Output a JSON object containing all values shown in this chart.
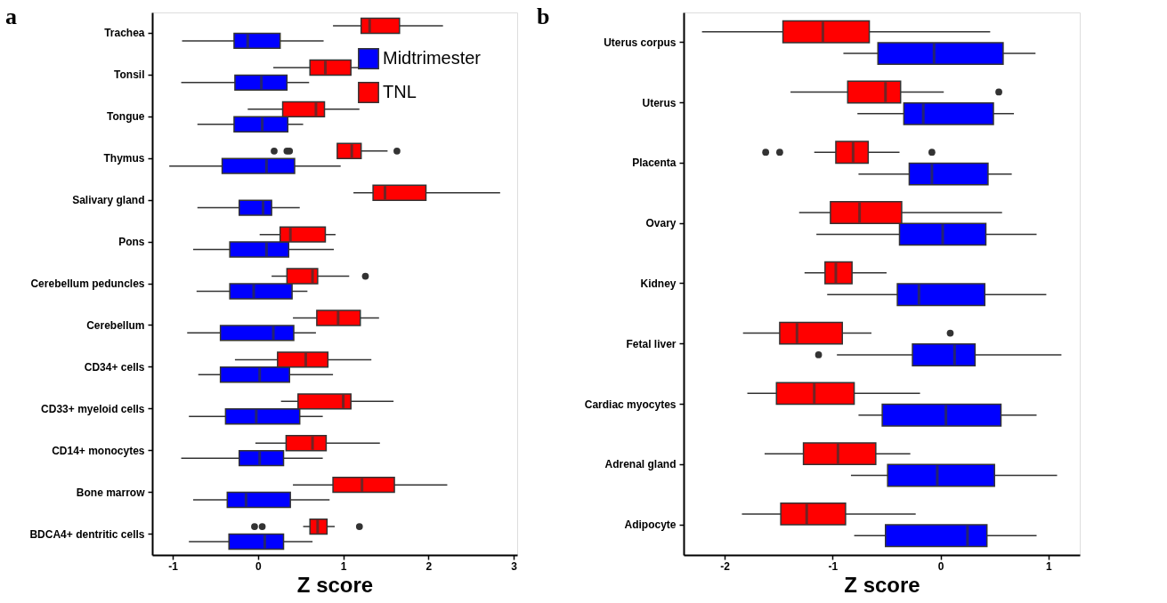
{
  "chart_data": [
    {
      "type": "box",
      "title": "a",
      "xlabel": "Z score",
      "orientation": "horizontal",
      "legend": "top right",
      "grid": false,
      "categories": [
        "Trachea",
        "Tonsil",
        "Tongue",
        "Thymus",
        "Salivary gland",
        "Pons",
        "Cerebellum peduncles",
        "Cerebellum",
        "CD34+ cells",
        "CD33+ myeloid cells",
        "CD14+ monocytes",
        "Bone marrow",
        "BDCA4+ dentritic cells"
      ],
      "xlim": [
        -1.24,
        3.04
      ],
      "xticks": [
        -1,
        0,
        1,
        2,
        3
      ],
      "series": [
        {
          "name": "Midtrimester",
          "color": "#0000ff",
          "boxes": [
            {
              "low": -0.89,
              "q1": -0.28,
              "median": -0.12,
              "q3": 0.26,
              "high": 0.77
            },
            {
              "low": -0.9,
              "q1": -0.27,
              "median": 0.04,
              "q3": 0.34,
              "high": 0.6
            },
            {
              "low": -0.71,
              "q1": -0.28,
              "median": 0.05,
              "q3": 0.35,
              "high": 0.53
            },
            {
              "low": -1.04,
              "q1": -0.42,
              "median": 0.1,
              "q3": 0.43,
              "high": 0.97
            },
            {
              "low": -0.71,
              "q1": -0.22,
              "median": 0.06,
              "q3": 0.16,
              "high": 0.49
            },
            {
              "low": -0.76,
              "q1": -0.33,
              "median": 0.1,
              "q3": 0.36,
              "high": 0.89
            },
            {
              "low": -0.72,
              "q1": -0.33,
              "median": -0.05,
              "q3": 0.4,
              "high": 0.58
            },
            {
              "low": -0.83,
              "q1": -0.44,
              "median": 0.18,
              "q3": 0.42,
              "high": 0.68
            },
            {
              "low": -0.7,
              "q1": -0.44,
              "median": 0.02,
              "q3": 0.37,
              "high": 0.88
            },
            {
              "low": -0.81,
              "q1": -0.38,
              "median": -0.02,
              "q3": 0.49,
              "high": 0.76
            },
            {
              "low": -0.9,
              "q1": -0.22,
              "median": 0.02,
              "q3": 0.3,
              "high": 0.76
            },
            {
              "low": -0.76,
              "q1": -0.36,
              "median": -0.14,
              "q3": 0.38,
              "high": 0.84
            },
            {
              "low": -0.81,
              "q1": -0.34,
              "median": 0.08,
              "q3": 0.3,
              "high": 0.64
            }
          ]
        },
        {
          "name": "TNL",
          "color": "#ff0000",
          "boxes": [
            {
              "low": 0.88,
              "q1": 1.21,
              "median": 1.31,
              "q3": 1.66,
              "high": 2.17
            },
            {
              "low": 0.18,
              "q1": 0.61,
              "median": 0.79,
              "q3": 1.09,
              "high": 1.41
            },
            {
              "low": -0.12,
              "q1": 0.29,
              "median": 0.68,
              "q3": 0.78,
              "high": 1.19
            },
            {
              "low": 0.93,
              "q1": 0.93,
              "median": 1.1,
              "q3": 1.21,
              "high": 1.52,
              "outliers": [
                0.19,
                0.34,
                0.37,
                1.63
              ]
            },
            {
              "low": 1.12,
              "q1": 1.35,
              "median": 1.49,
              "q3": 1.97,
              "high": 2.84
            },
            {
              "low": 0.02,
              "q1": 0.26,
              "median": 0.38,
              "q3": 0.79,
              "high": 0.91
            },
            {
              "low": 0.16,
              "q1": 0.34,
              "median": 0.64,
              "q3": 0.7,
              "high": 1.07,
              "outliers": [
                1.26
              ]
            },
            {
              "low": 0.41,
              "q1": 0.69,
              "median": 0.94,
              "q3": 1.2,
              "high": 1.42
            },
            {
              "low": -0.27,
              "q1": 0.23,
              "median": 0.56,
              "q3": 0.82,
              "high": 1.33
            },
            {
              "low": 0.27,
              "q1": 0.47,
              "median": 1.0,
              "q3": 1.09,
              "high": 1.59
            },
            {
              "low": -0.03,
              "q1": 0.33,
              "median": 0.64,
              "q3": 0.8,
              "high": 1.43
            },
            {
              "low": 0.41,
              "q1": 0.88,
              "median": 1.22,
              "q3": 1.6,
              "high": 2.22
            },
            {
              "low": 0.53,
              "q1": 0.61,
              "median": 0.7,
              "q3": 0.81,
              "high": 0.9,
              "outliers": [
                -0.04,
                0.05,
                1.19
              ]
            }
          ]
        }
      ]
    },
    {
      "type": "box",
      "title": "b",
      "xlabel": "Z score",
      "orientation": "horizontal",
      "grid": false,
      "categories": [
        "Uterus corpus",
        "Uterus",
        "Placenta",
        "Ovary",
        "Kidney",
        "Fetal liver",
        "Cardiac myocytes",
        "Adrenal gland",
        "Adipocyte"
      ],
      "xlim": [
        -2.38,
        1.29
      ],
      "xticks": [
        -2,
        -1,
        0,
        1
      ],
      "series": [
        {
          "color": "#0000ff",
          "boxes": [
            {
              "low": -0.9,
              "q1": -0.58,
              "median": -0.06,
              "q3": 0.58,
              "high": 0.88
            },
            {
              "low": -0.77,
              "q1": -0.34,
              "median": -0.16,
              "q3": 0.49,
              "high": 0.68
            },
            {
              "low": -0.76,
              "q1": -0.29,
              "median": -0.08,
              "q3": 0.44,
              "high": 0.66
            },
            {
              "low": -1.15,
              "q1": -0.38,
              "median": 0.02,
              "q3": 0.42,
              "high": 0.89
            },
            {
              "low": -1.05,
              "q1": -0.4,
              "median": -0.2,
              "q3": 0.41,
              "high": 0.98
            },
            {
              "low": -0.96,
              "q1": -0.26,
              "median": 0.13,
              "q3": 0.32,
              "high": 1.12,
              "outliers": [
                -1.13
              ]
            },
            {
              "low": -0.76,
              "q1": -0.54,
              "median": 0.05,
              "q3": 0.56,
              "high": 0.89
            },
            {
              "low": -0.83,
              "q1": -0.49,
              "median": -0.03,
              "q3": 0.5,
              "high": 1.08
            },
            {
              "low": -0.8,
              "q1": -0.51,
              "median": 0.25,
              "q3": 0.43,
              "high": 0.89
            }
          ]
        },
        {
          "color": "#ff0000",
          "boxes": [
            {
              "low": -2.21,
              "q1": -1.46,
              "median": -1.09,
              "q3": -0.66,
              "high": 0.46
            },
            {
              "low": -1.39,
              "q1": -0.86,
              "median": -0.51,
              "q3": -0.37,
              "high": 0.03,
              "outliers": [
                0.54
              ]
            },
            {
              "low": -1.17,
              "q1": -0.97,
              "median": -0.81,
              "q3": -0.67,
              "high": -0.38,
              "outliers": [
                -1.62,
                -1.49,
                -0.08
              ]
            },
            {
              "low": -1.31,
              "q1": -1.02,
              "median": -0.75,
              "q3": -0.36,
              "high": 0.57
            },
            {
              "low": -1.26,
              "q1": -1.07,
              "median": -0.97,
              "q3": -0.82,
              "high": -0.5
            },
            {
              "low": -1.83,
              "q1": -1.49,
              "median": -1.33,
              "q3": -0.91,
              "high": -0.64,
              "outliers": [
                0.09
              ]
            },
            {
              "low": -1.79,
              "q1": -1.52,
              "median": -1.17,
              "q3": -0.8,
              "high": -0.19
            },
            {
              "low": -1.63,
              "q1": -1.27,
              "median": -0.95,
              "q3": -0.6,
              "high": -0.28
            },
            {
              "low": -1.84,
              "q1": -1.48,
              "median": -1.24,
              "q3": -0.88,
              "high": -0.23
            }
          ]
        }
      ]
    }
  ]
}
